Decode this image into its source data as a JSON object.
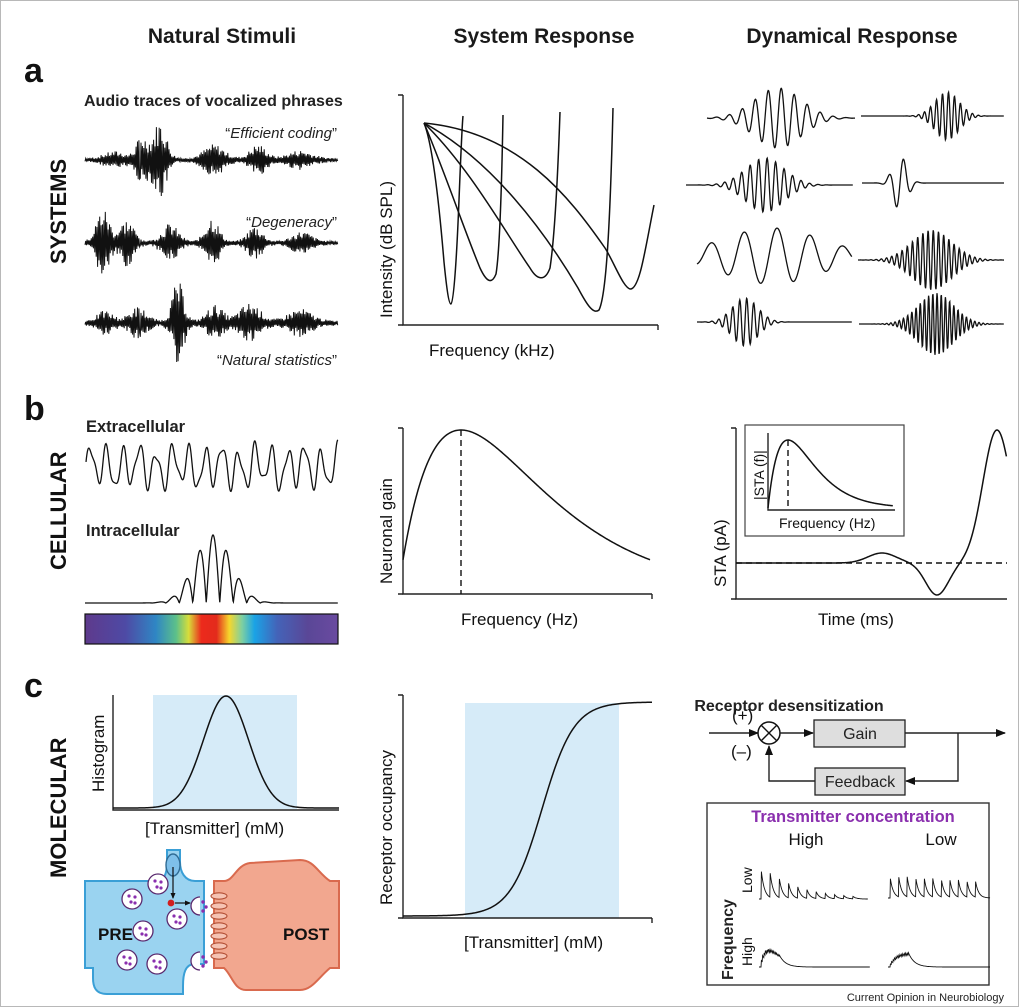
{
  "columns": [
    "Natural Stimuli",
    "System Response",
    "Dynamical Response"
  ],
  "panels": [
    "a",
    "b",
    "c"
  ],
  "rows": [
    "SYSTEMS",
    "CELLULAR",
    "MOLECULAR"
  ],
  "row_a": {
    "audio_title": "Audio traces of vocalized phrases",
    "phrases": [
      "Efficient coding",
      "Degeneracy",
      "Natural statistics"
    ],
    "tuning_xlabel": "Frequency (kHz)",
    "tuning_ylabel": "Intensity (dB SPL)"
  },
  "row_b": {
    "extracellular": "Extracellular",
    "intracellular": "Intracellular",
    "gain_xlabel": "Frequency (Hz)",
    "gain_ylabel": "Neuronal gain",
    "sta_xlabel": "Time (ms)",
    "sta_ylabel": "STA (pA)",
    "inset_xlabel": "Frequency (Hz)",
    "inset_ylabel": "|STA (f)|"
  },
  "row_c": {
    "hist_ylabel": "Histogram",
    "hist_xlabel": "[Transmitter] (mM)",
    "pre_label": "PRE",
    "post_label": "POST",
    "occ_ylabel": "Receptor occupancy",
    "occ_xlabel": "[Transmitter] (mM)",
    "loop_title": "Receptor desensitization",
    "plus": "(+)",
    "minus": "(–)",
    "gain_box": "Gain",
    "feedback_box": "Feedback",
    "conc_title": "Transmitter concentration",
    "conc_high": "High",
    "conc_low": "Low",
    "freq_label": "Frequency",
    "freq_low": "Low",
    "freq_high": "High"
  },
  "credit": "Current Opinion in Neurobiology",
  "colors": {
    "shade": "#d6ebf8",
    "pre": "#9ad3f0",
    "post": "#f2a78f",
    "accent": "#8a2fae"
  }
}
